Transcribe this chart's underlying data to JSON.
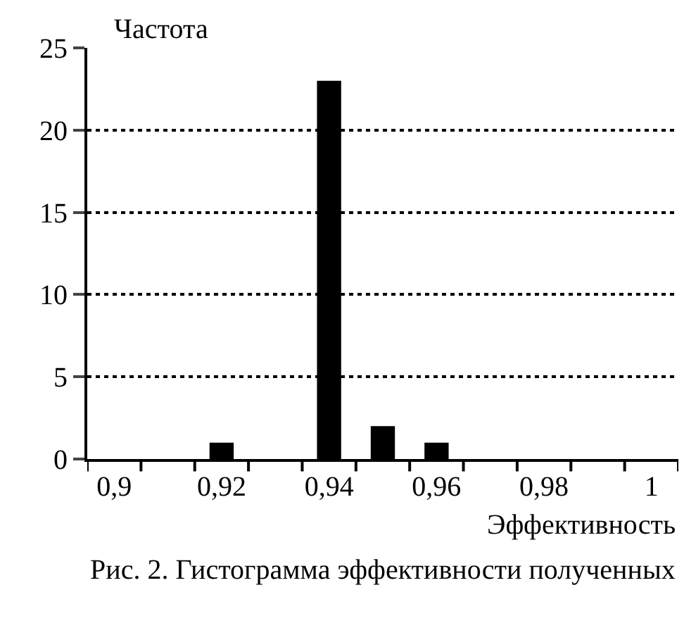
{
  "chart_data": {
    "type": "bar",
    "ylabel": "Частота",
    "xlabel": "Эффективность",
    "categories": [
      "0,9",
      null,
      "0,92",
      null,
      "0,94",
      null,
      "0,96",
      null,
      "0,98",
      null,
      "1"
    ],
    "values": [
      0,
      0,
      1,
      0,
      23,
      2,
      1,
      0,
      0,
      0,
      0
    ],
    "color": "#000000",
    "ylim": [
      0,
      25
    ],
    "yticks": [
      0,
      5,
      10,
      15,
      20,
      25
    ],
    "grid": "y",
    "legend": false,
    "annotations": [
      "Рис. 2. Гистограмма эффективности полученных"
    ]
  }
}
